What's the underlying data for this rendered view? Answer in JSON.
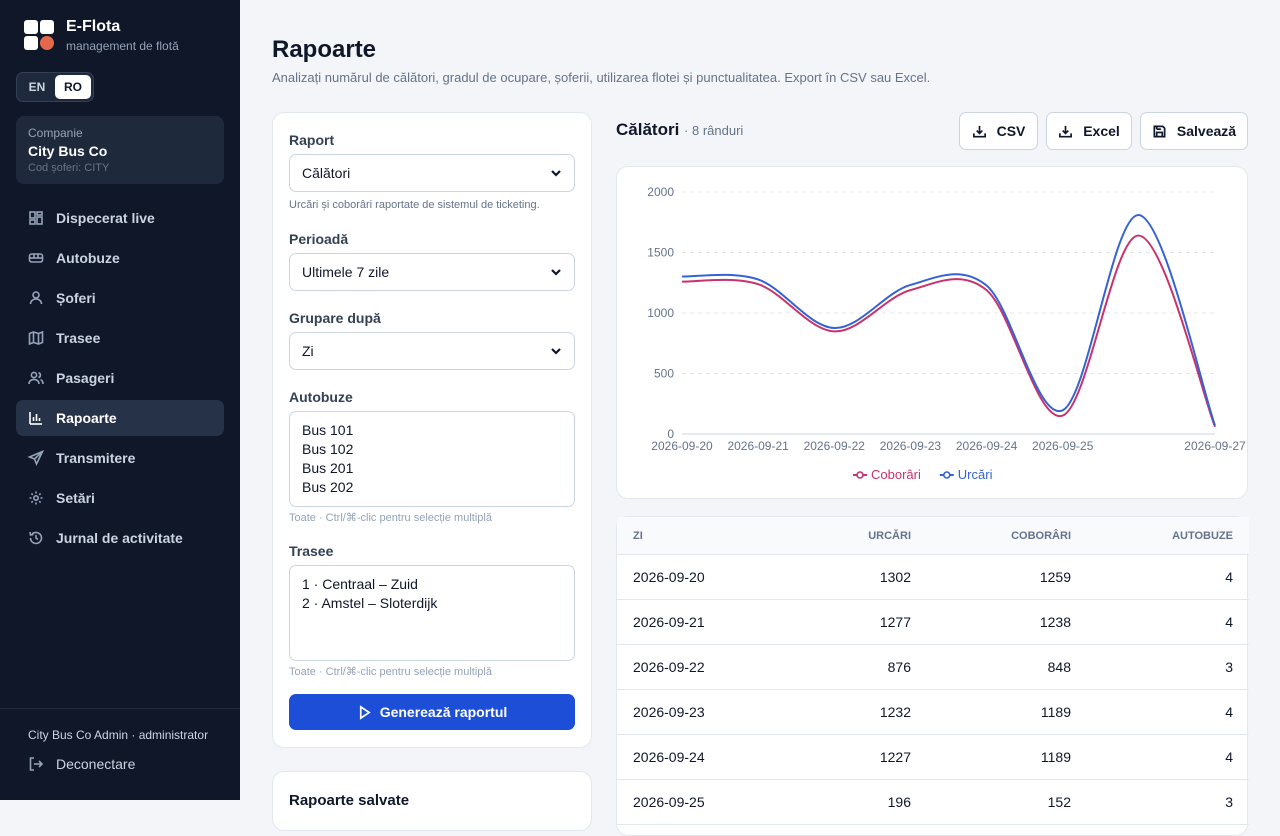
{
  "brand": {
    "name": "E-Flota",
    "subtitle": "management de flotă"
  },
  "lang": {
    "en": "EN",
    "ro": "RO",
    "active": "RO"
  },
  "company": {
    "label": "Companie",
    "name": "City Bus Co",
    "code": "Cod șoferi: CITY"
  },
  "nav": [
    {
      "label": "Dispecerat live",
      "icon": "dashboard-icon"
    },
    {
      "label": "Autobuze",
      "icon": "bus-icon"
    },
    {
      "label": "Șoferi",
      "icon": "user-icon"
    },
    {
      "label": "Trasee",
      "icon": "map-icon"
    },
    {
      "label": "Pasageri",
      "icon": "users-icon"
    },
    {
      "label": "Rapoarte",
      "icon": "bar-chart-icon",
      "active": true
    },
    {
      "label": "Transmitere",
      "icon": "send-icon"
    },
    {
      "label": "Setări",
      "icon": "gear-icon"
    },
    {
      "label": "Jurnal de activitate",
      "icon": "history-icon"
    }
  ],
  "user": {
    "line": "City Bus Co Admin · administrator",
    "logout": "Deconectare"
  },
  "page": {
    "title": "Rapoarte",
    "description": "Analizați numărul de călători, gradul de ocupare, șoferii, utilizarea flotei și punctualitatea. Export în CSV sau Excel."
  },
  "filters": {
    "report_label": "Raport",
    "report_value": "Călători",
    "report_hint": "Urcări și coborâri raportate de sistemul de ticketing.",
    "period_label": "Perioadă",
    "period_value": "Ultimele 7 zile",
    "group_label": "Grupare după",
    "group_value": "Zi",
    "buses_label": "Autobuze",
    "buses": [
      "Bus 101",
      "Bus 102",
      "Bus 201",
      "Bus 202"
    ],
    "buses_hint": "Toate · Ctrl/⌘-clic pentru selecție multiplă",
    "routes_label": "Trasee",
    "routes": [
      "1 · Centraal – Zuid",
      "2 · Amstel – Sloterdijk"
    ],
    "routes_hint": "Toate · Ctrl/⌘-clic pentru selecție multiplă",
    "generate": "Generează raportul"
  },
  "saved": {
    "title": "Rapoarte salvate"
  },
  "report": {
    "title": "Călători",
    "rows": "· 8 rânduri",
    "csv": "CSV",
    "excel": "Excel",
    "save": "Salvează"
  },
  "colors": {
    "urcari": "#3563d6",
    "coborari": "#c8326d",
    "accent": "#1d4ed8"
  },
  "chart_data": {
    "type": "line",
    "x": [
      "2026-09-20",
      "2026-09-21",
      "2026-09-22",
      "2026-09-23",
      "2026-09-24",
      "2026-09-25",
      "2026-09-26",
      "2026-09-27"
    ],
    "x_tick_labels": [
      "2026-09-20",
      "2026-09-21",
      "2026-09-22",
      "2026-09-23",
      "2026-09-24",
      "2026-09-25",
      "2026-09-27"
    ],
    "series": [
      {
        "name": "Coborâri",
        "values": [
          1259,
          1238,
          848,
          1189,
          1189,
          152,
          1640,
          60
        ]
      },
      {
        "name": "Urcări",
        "values": [
          1302,
          1277,
          876,
          1232,
          1227,
          196,
          1810,
          70
        ]
      }
    ],
    "ylim": [
      0,
      2000
    ],
    "yticks": [
      0,
      500,
      1000,
      1500,
      2000
    ],
    "grid": true,
    "legend": "bottom"
  },
  "table": {
    "headers": [
      "ZI",
      "URCĂRI",
      "COBORÂRI",
      "AUTOBUZE"
    ],
    "rows": [
      [
        "2026-09-20",
        "1302",
        "1259",
        "4"
      ],
      [
        "2026-09-21",
        "1277",
        "1238",
        "4"
      ],
      [
        "2026-09-22",
        "876",
        "848",
        "3"
      ],
      [
        "2026-09-23",
        "1232",
        "1189",
        "4"
      ],
      [
        "2026-09-24",
        "1227",
        "1189",
        "4"
      ],
      [
        "2026-09-25",
        "196",
        "152",
        "3"
      ]
    ]
  }
}
